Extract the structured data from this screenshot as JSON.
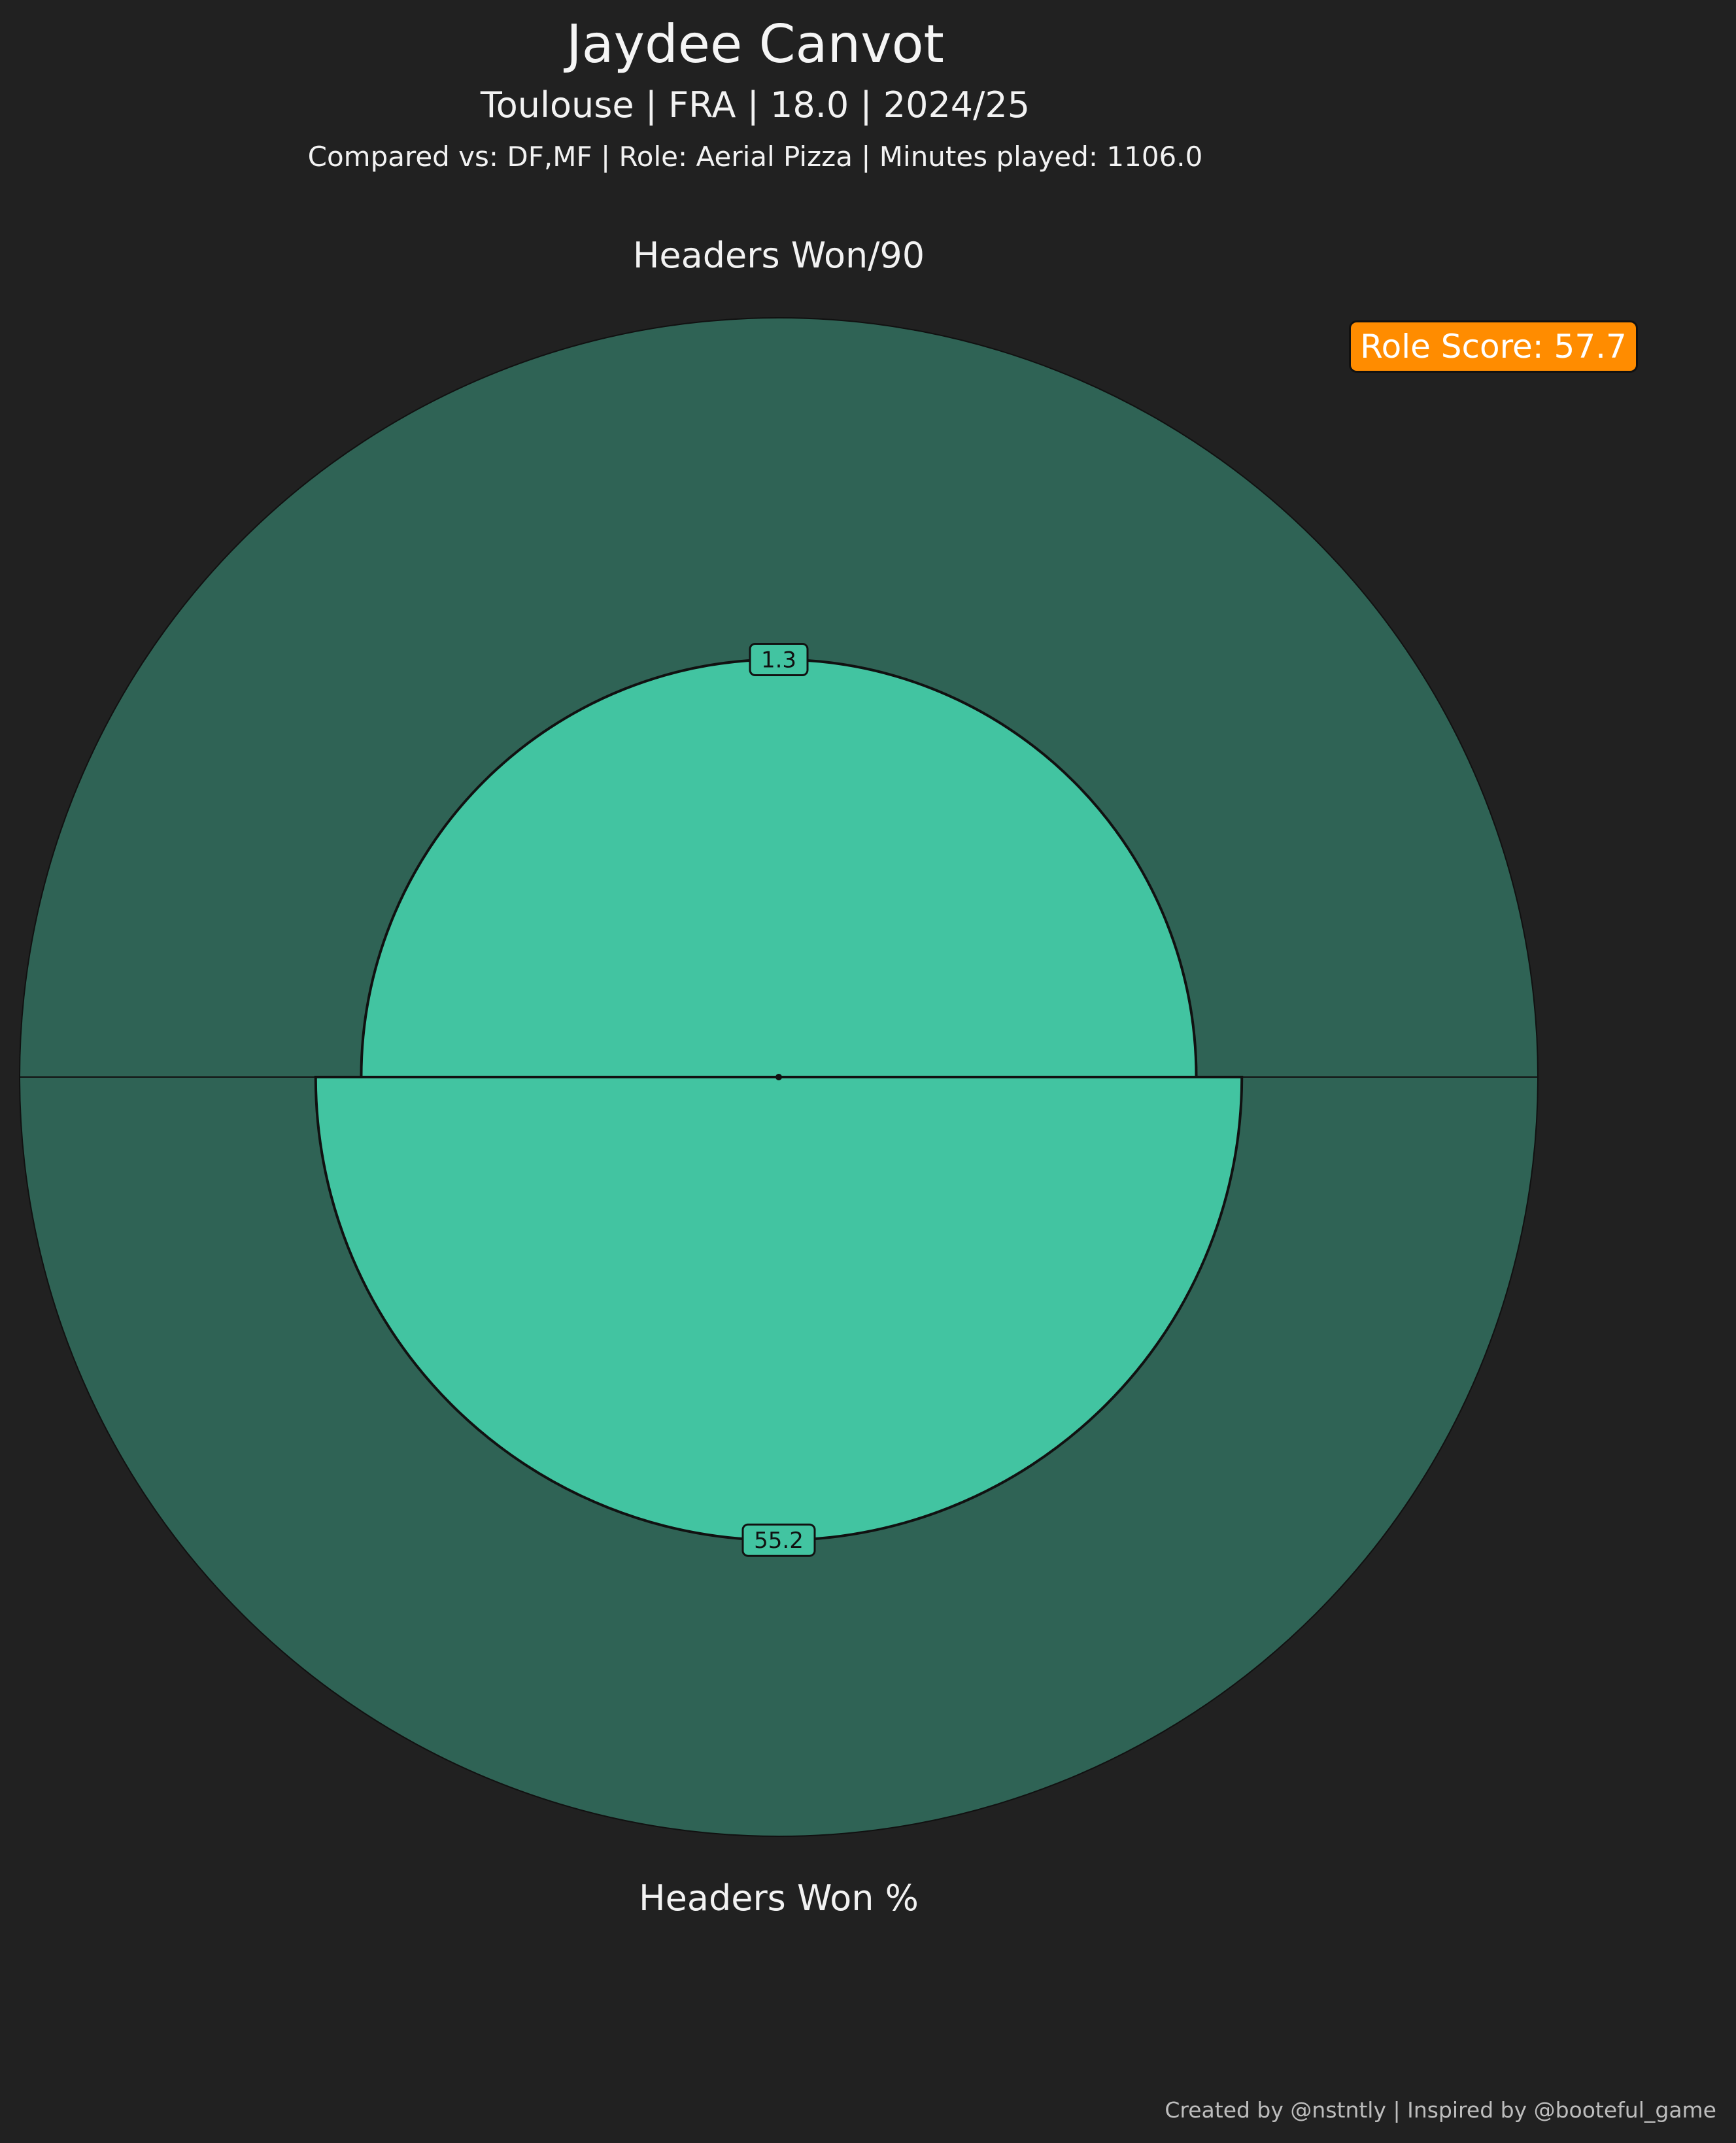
{
  "header": {
    "title": "Jaydee Canvot",
    "subtitle": "Toulouse | FRA | 18.0 | 2024/25",
    "comparison": "Compared vs: DF,MF | Role: Aerial Pizza | Minutes played: 1106.0"
  },
  "role_score": "Role Score: 57.7",
  "credit": "Created by @nstntly | Inspired by @booteful_game",
  "colors": {
    "background": "#212121",
    "slice_background": "#2f6355",
    "slice_fill": "#42c4a1",
    "role_score_badge": "#ff8c00",
    "outline": "#111111"
  },
  "chart_data": {
    "type": "pie",
    "variant": "pizza",
    "title": "Jaydee Canvot",
    "ylim": [
      0,
      100
    ],
    "categories": [
      "Headers Won/90",
      "Headers Won %"
    ],
    "percentiles": [
      55,
      61
    ],
    "value_labels": [
      "1.3",
      "55.2"
    ],
    "legend": "none",
    "grid": false
  }
}
